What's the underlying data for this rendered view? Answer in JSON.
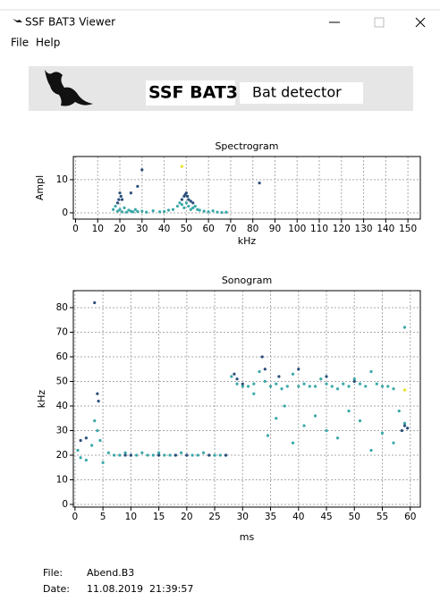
{
  "window": {
    "title": "SSF BAT3 Viewer"
  },
  "menu": [
    "File",
    "Help"
  ],
  "banner": {
    "brand": "SSF BAT3",
    "subtitle": "Bat detector"
  },
  "chart_data": [
    {
      "type": "scatter",
      "title": "Spectrogram",
      "x_label": "kHz",
      "y_label": "Ampl",
      "xlim": [
        -1,
        155.6
      ],
      "ylim": [
        -1.9,
        17
      ],
      "xticks": [
        0,
        10,
        20,
        30,
        40,
        50,
        60,
        70,
        80,
        90,
        100,
        110,
        120,
        130,
        140,
        150
      ],
      "yticks": [
        0,
        10
      ],
      "grid": true,
      "series": [
        {
          "color": "#3aa8a8",
          "x": [
            17,
            18,
            19,
            20,
            21,
            22,
            23,
            24,
            25,
            26,
            27,
            28,
            30,
            32,
            35,
            38,
            40,
            42,
            44,
            46,
            47,
            48,
            49,
            50,
            51,
            52,
            53,
            54,
            55,
            56,
            58,
            60,
            62,
            64,
            66,
            68
          ],
          "values": [
            1,
            2,
            0.5,
            1,
            0.3,
            1.5,
            0.2,
            0.8,
            0.5,
            0.3,
            1,
            0.4,
            0.5,
            0.2,
            0.6,
            0.3,
            0.4,
            0.8,
            1,
            2,
            3,
            2.5,
            1.5,
            3,
            2,
            1,
            1.5,
            2,
            1,
            0.8,
            0.5,
            0.3,
            0.6,
            0.2,
            0.1,
            0.2
          ]
        },
        {
          "color": "#2b4f7a",
          "x": [
            19,
            19.5,
            20,
            20.5,
            21,
            28,
            25,
            30,
            48,
            49,
            49.5,
            50,
            50.5,
            51,
            52,
            53,
            83
          ],
          "values": [
            3,
            4,
            6,
            5,
            4,
            8,
            6,
            13,
            4,
            5,
            5.5,
            6,
            5,
            4,
            3.5,
            3,
            9
          ]
        },
        {
          "color": "#e8e020",
          "x": [
            48
          ],
          "values": [
            14
          ]
        }
      ]
    },
    {
      "type": "scatter",
      "title": "Sonogram",
      "x_label": "ms",
      "y_label": "kHz",
      "xlim": [
        -0.3,
        61.8
      ],
      "ylim": [
        -1.1,
        86.9
      ],
      "xticks": [
        0,
        5,
        10,
        15,
        20,
        25,
        30,
        35,
        40,
        45,
        50,
        55,
        60
      ],
      "yticks": [
        0,
        10,
        20,
        30,
        40,
        50,
        60,
        70,
        80
      ],
      "grid": true,
      "series": [
        {
          "color": "#3aa8a8",
          "x": [
            0.5,
            1,
            2,
            3,
            3.5,
            4,
            4.5,
            5,
            6,
            7,
            8,
            9,
            10,
            11,
            12,
            13,
            14,
            15,
            16,
            17,
            18,
            19,
            20,
            21,
            22,
            23,
            24,
            25,
            26,
            27,
            28,
            29,
            30,
            31,
            32,
            33,
            34,
            35,
            36,
            37,
            38,
            39,
            40,
            41,
            42,
            43,
            44,
            45,
            46,
            47,
            48,
            49,
            50,
            51,
            52,
            53,
            54,
            55,
            56,
            57,
            58,
            59,
            32,
            34.5,
            36,
            37.5,
            39,
            41,
            43,
            45,
            47,
            49,
            51,
            53,
            55,
            57,
            59
          ],
          "values": [
            22,
            19,
            18,
            24,
            34,
            30,
            26,
            17,
            21,
            20,
            20,
            21,
            20,
            20,
            21,
            20,
            20,
            21,
            20,
            20,
            20,
            21,
            20,
            20,
            20,
            21,
            20,
            20,
            20,
            20,
            52,
            49,
            48,
            48,
            49,
            54,
            50,
            48,
            49,
            47,
            48,
            53,
            48,
            49,
            48,
            48,
            51,
            49,
            48,
            47,
            49,
            48,
            51,
            49,
            48,
            54,
            49,
            48,
            48,
            47,
            38,
            33,
            45,
            28,
            35,
            40,
            25,
            32,
            36,
            30,
            27,
            38,
            34,
            22,
            29,
            25,
            72
          ]
        },
        {
          "color": "#2b4f7a",
          "x": [
            3.5,
            4,
            4.2,
            1,
            2,
            9,
            10,
            15,
            18,
            20,
            24,
            27,
            28.5,
            29,
            30,
            33.5,
            34,
            36.5,
            40,
            45,
            50,
            58.5,
            59,
            59.5
          ],
          "values": [
            82,
            45,
            42,
            26,
            27,
            20,
            20,
            20,
            20,
            20,
            20,
            20,
            53,
            51,
            49,
            60,
            55,
            52,
            55,
            52,
            50,
            30,
            32,
            31
          ]
        },
        {
          "color": "#e8e020",
          "x": [
            59
          ],
          "values": [
            46.5
          ]
        }
      ]
    }
  ],
  "file_info": {
    "file_label": "File:",
    "file_value": "Abend.B3",
    "date_label": "Date:",
    "date_value": "11.08.2019  21:39:57"
  }
}
